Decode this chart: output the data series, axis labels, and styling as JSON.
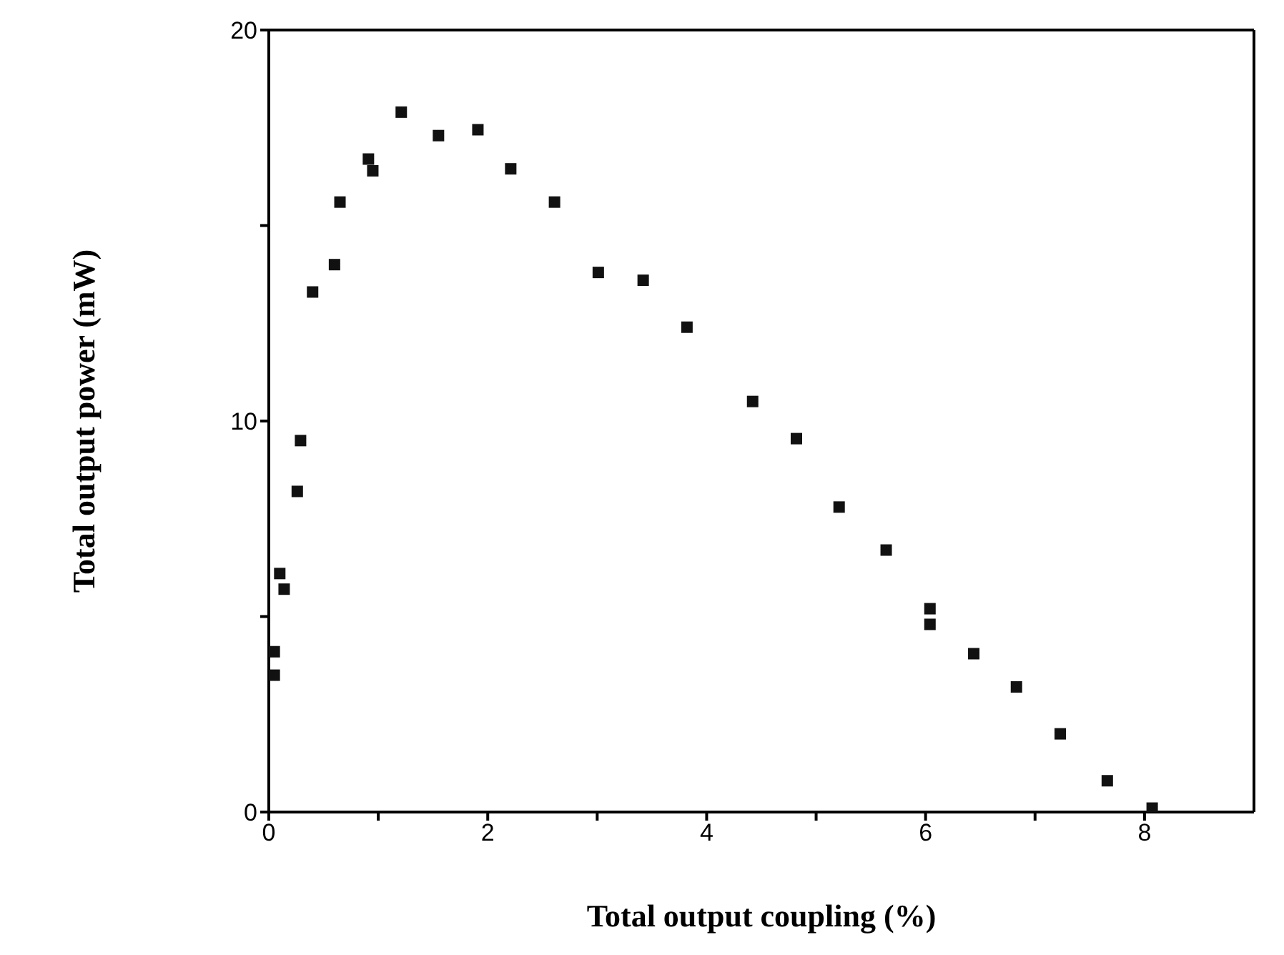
{
  "chart_data": {
    "type": "scatter",
    "xlabel": "Total output coupling (%)",
    "ylabel": "Total output power (mW)",
    "series": [
      {
        "color": "#111111",
        "x": [
          0.05,
          0.05,
          0.1,
          0.14,
          0.26,
          0.29,
          0.4,
          0.6,
          0.65,
          0.91,
          0.95,
          1.21,
          1.55,
          1.91,
          2.21,
          2.61,
          3.01,
          3.42,
          3.82,
          4.42,
          4.82,
          5.21,
          5.64,
          6.04,
          6.04,
          6.44,
          6.83,
          7.23,
          7.66,
          8.07
        ],
        "values": [
          4.1,
          3.5,
          6.1,
          5.7,
          8.2,
          9.5,
          13.3,
          14.0,
          15.6,
          16.7,
          16.4,
          17.9,
          17.3,
          17.45,
          16.45,
          15.6,
          13.8,
          13.6,
          12.4,
          10.5,
          9.55,
          7.8,
          6.7,
          5.2,
          4.8,
          4.05,
          3.2,
          2.0,
          0.8,
          0.1
        ]
      }
    ],
    "xlim": [
      0,
      9
    ],
    "xticks": [
      0,
      {
        "value": 1,
        "label": null
      },
      2,
      {
        "value": 3,
        "label": null
      },
      4,
      {
        "value": 5,
        "label": null
      },
      6,
      {
        "value": 7,
        "label": null
      },
      8
    ],
    "ylim": [
      0,
      20
    ],
    "yticks": [
      0,
      {
        "value": 5,
        "label": null
      },
      10,
      {
        "value": 15,
        "label": null
      },
      20
    ],
    "marker": "square",
    "legend": false
  }
}
